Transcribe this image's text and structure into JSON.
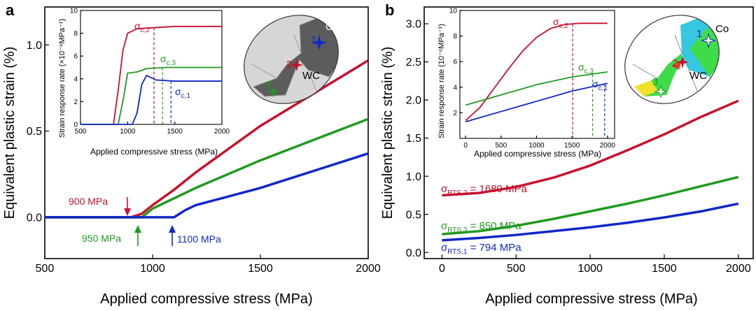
{
  "colors": {
    "red": "#c8102e",
    "green": "#1f9a1f",
    "blue": "#1028c8",
    "axis": "#000000"
  },
  "chart_data": [
    {
      "panel": "a",
      "type": "line",
      "xlabel": "Applied compressive stress (MPa)",
      "ylabel": "Equivalent plastic strain (%)",
      "xlim": [
        500,
        2000
      ],
      "ylim": [
        -0.24,
        1.22
      ],
      "xticks": [
        500,
        1000,
        1500,
        2000
      ],
      "yticks": [
        0.0,
        0.5,
        1.0
      ],
      "series": [
        {
          "name": "red",
          "color": "red",
          "x": [
            500,
            900,
            950,
            1000,
            1100,
            1200,
            1500,
            2000
          ],
          "y": [
            0,
            0,
            0.02,
            0.07,
            0.16,
            0.26,
            0.53,
            0.91
          ]
        },
        {
          "name": "green",
          "color": "green",
          "x": [
            500,
            950,
            1000,
            1100,
            1200,
            1500,
            2000
          ],
          "y": [
            0,
            0,
            0.05,
            0.11,
            0.17,
            0.33,
            0.57
          ]
        },
        {
          "name": "blue",
          "color": "blue",
          "x": [
            500,
            1100,
            1150,
            1200,
            1500,
            2000
          ],
          "y": [
            0,
            0,
            0.04,
            0.07,
            0.17,
            0.37
          ]
        }
      ],
      "annotations": [
        {
          "text": "900 MPa",
          "color": "red",
          "x": 900,
          "y": 0.0,
          "direction": "down"
        },
        {
          "text": "950 MPa",
          "color": "green",
          "x": 950,
          "y": 0.0,
          "direction": "up"
        },
        {
          "text": "1100 MPa",
          "color": "blue",
          "x": 1100,
          "y": 0.0,
          "direction": "up"
        }
      ],
      "inset": {
        "type": "line",
        "xlabel": "Applied compressive stress (MPa)",
        "ylabel": "Strain response rate (×10⁻⁶MPa⁻¹)",
        "xlim": [
          500,
          2000
        ],
        "ylim": [
          0,
          10
        ],
        "xticks": [
          500,
          1000,
          1500,
          2000
        ],
        "yticks": [
          0,
          2,
          4,
          6,
          8,
          10
        ],
        "series": [
          {
            "name": "red",
            "color": "red",
            "x": [
              500,
              850,
              900,
              950,
              1000,
              1100,
              1300,
              1500,
              2000
            ],
            "y": [
              0,
              0,
              3,
              6.5,
              8.0,
              8.4,
              8.5,
              8.6,
              8.6
            ]
          },
          {
            "name": "green",
            "color": "green",
            "x": [
              500,
              900,
              960,
              1000,
              1100,
              1200,
              1400,
              2000
            ],
            "y": [
              0,
              0,
              2.5,
              4.5,
              4.6,
              4.9,
              5.0,
              5.0
            ]
          },
          {
            "name": "blue",
            "color": "blue",
            "x": [
              500,
              1050,
              1100,
              1150,
              1200,
              1300,
              1500,
              2000
            ],
            "y": [
              0,
              0,
              1.0,
              3.5,
              4.3,
              3.9,
              3.8,
              3.8
            ]
          }
        ],
        "vlines": [
          {
            "x": 1280,
            "y_top": 8.5,
            "color": "red",
            "label": "σ",
            "sub": "c,2"
          },
          {
            "x": 1370,
            "y_top": 5.0,
            "color": "green",
            "label": "σ",
            "sub": "c,3"
          },
          {
            "x": 1460,
            "y_top": 3.8,
            "color": "blue",
            "label": "σ",
            "sub": "c,1"
          }
        ]
      },
      "micro_labels": {
        "co": "Co",
        "wc": "WC",
        "p1": "1",
        "p2": "2",
        "p3": "3"
      }
    },
    {
      "panel": "b",
      "type": "line",
      "xlabel": "Applied compressive stress (MPa)",
      "ylabel": "Equivalent plastic strain (%)",
      "xlim": [
        -120,
        2100
      ],
      "ylim": [
        -0.08,
        3.22
      ],
      "xticks": [
        0,
        500,
        1000,
        1500,
        2000
      ],
      "yticks": [
        0.0,
        0.5,
        1.0,
        1.5,
        2.0,
        2.5,
        3.0
      ],
      "series": [
        {
          "name": "red",
          "color": "red",
          "x": [
            0,
            250,
            500,
            750,
            1000,
            1250,
            1500,
            1750,
            2000
          ],
          "y": [
            0.75,
            0.78,
            0.86,
            0.98,
            1.14,
            1.34,
            1.55,
            1.78,
            1.99
          ]
        },
        {
          "name": "green",
          "color": "green",
          "x": [
            0,
            250,
            500,
            750,
            1000,
            1250,
            1500,
            1750,
            2000
          ],
          "y": [
            0.24,
            0.28,
            0.35,
            0.44,
            0.54,
            0.64,
            0.75,
            0.87,
            0.99
          ]
        },
        {
          "name": "blue",
          "color": "blue",
          "x": [
            0,
            250,
            500,
            750,
            1000,
            1250,
            1500,
            1750,
            2000
          ],
          "y": [
            0.16,
            0.19,
            0.23,
            0.28,
            0.33,
            0.39,
            0.46,
            0.54,
            0.64
          ]
        }
      ],
      "labels": [
        {
          "prefix": "σ",
          "sub": "RTS,2",
          "text": " = 1680 MPa",
          "color": "red"
        },
        {
          "prefix": "σ",
          "sub": "RTS,3",
          "text": " = 850 MPa",
          "color": "green"
        },
        {
          "prefix": "σ",
          "sub": "RTS,1",
          "text": " = 794 MPa",
          "color": "blue"
        }
      ],
      "inset": {
        "type": "line",
        "xlabel": "Applied compressive stress (MPa)",
        "ylabel": "Strain response rate (10⁻⁶MPa⁻¹)",
        "xlim": [
          -80,
          2100
        ],
        "ylim": [
          0,
          10
        ],
        "xticks": [
          0,
          500,
          1000,
          1500,
          2000
        ],
        "yticks": [
          2,
          4,
          6,
          8,
          10
        ],
        "series": [
          {
            "name": "red",
            "color": "red",
            "x": [
              0,
              200,
              400,
              600,
              800,
              1000,
              1200,
              1400,
              1600,
              1800,
              2000
            ],
            "y": [
              1.4,
              2.4,
              3.9,
              5.4,
              6.8,
              7.9,
              8.6,
              8.9,
              9.0,
              9.0,
              9.0
            ]
          },
          {
            "name": "green",
            "color": "green",
            "x": [
              0,
              250,
              500,
              750,
              1000,
              1250,
              1500,
              1750,
              2000
            ],
            "y": [
              2.6,
              3.0,
              3.4,
              3.8,
              4.2,
              4.5,
              4.8,
              5.0,
              5.2
            ]
          },
          {
            "name": "blue",
            "color": "blue",
            "x": [
              0,
              250,
              500,
              750,
              1000,
              1250,
              1500,
              1750,
              2000
            ],
            "y": [
              1.3,
              1.7,
              2.1,
              2.5,
              2.9,
              3.3,
              3.7,
              4.0,
              4.3
            ]
          }
        ],
        "vlines": [
          {
            "x": 1510,
            "y_top": 8.95,
            "color": "red",
            "label": "σ",
            "sub": "c,2"
          },
          {
            "x": 1790,
            "y_top": 5.0,
            "color": "green",
            "label": "σ",
            "sub": "c,3"
          },
          {
            "x": 1960,
            "y_top": 4.25,
            "color": "blue",
            "label": "σ",
            "sub": "c,1"
          }
        ]
      },
      "micro_labels": {
        "co": "Co",
        "wc": "WC",
        "p1": "1",
        "p2": "2",
        "p3": "3"
      }
    }
  ]
}
